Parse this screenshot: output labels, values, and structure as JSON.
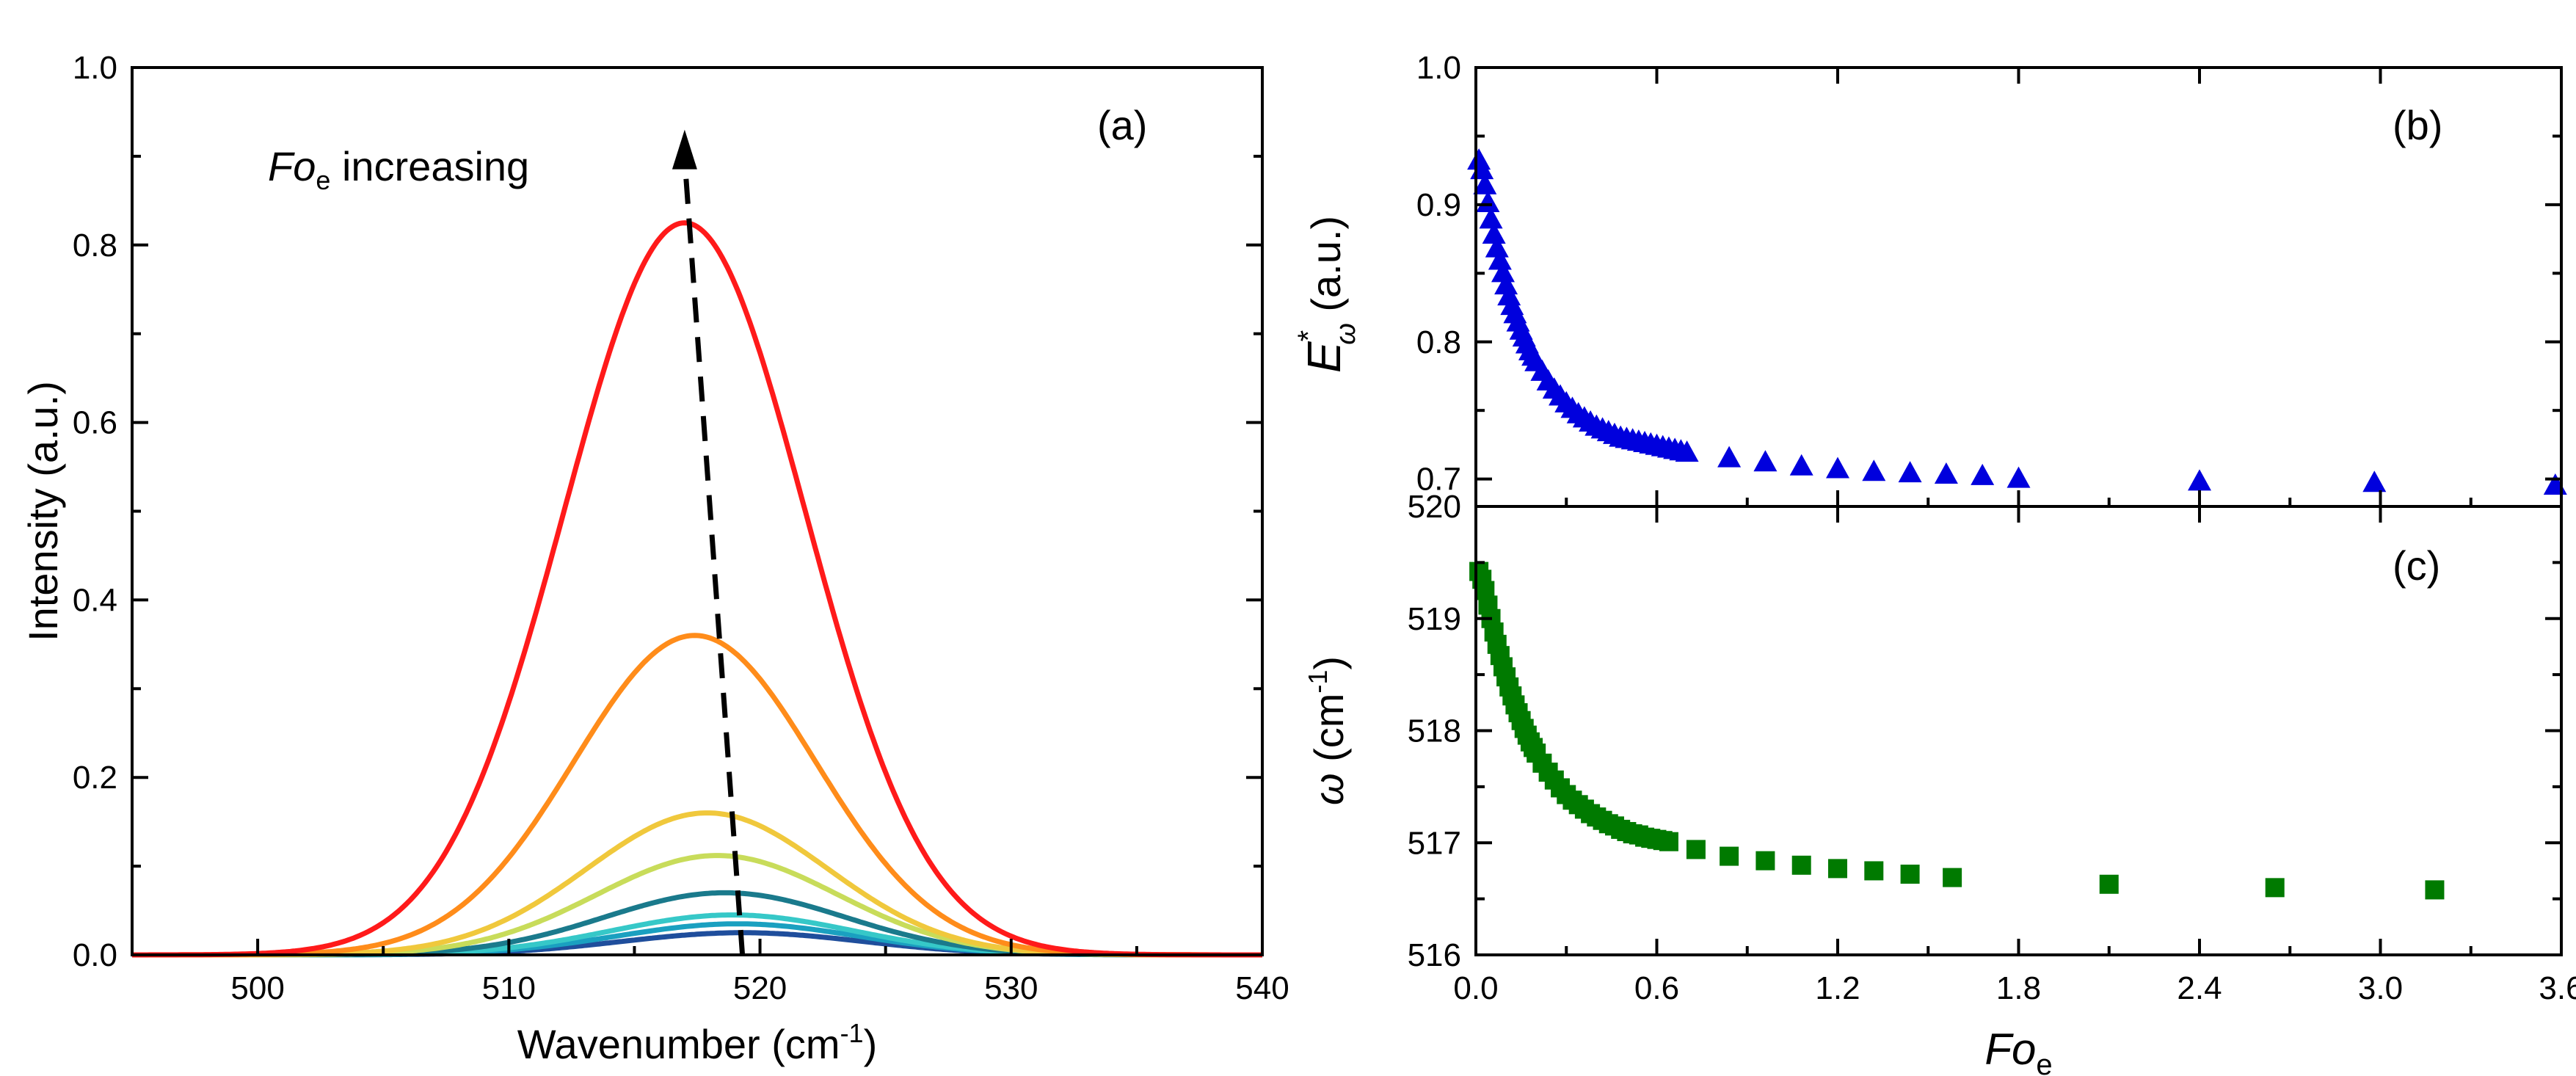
{
  "chart_data": [
    {
      "panel": "(a)",
      "type": "line",
      "xlabel": "Wavenumber (cm",
      "xlabel_sup": "-1",
      "xlabel_end": ")",
      "ylabel": "Intensity (a.u.)",
      "xlim": [
        495,
        540
      ],
      "ylim": [
        0,
        1.0
      ],
      "xticks": [
        500,
        510,
        520,
        530,
        540
      ],
      "yticks": [
        0.0,
        0.2,
        0.4,
        0.6,
        0.8,
        1.0
      ],
      "xtick_labels": [
        "500",
        "510",
        "520",
        "530",
        "540"
      ],
      "ytick_labels": [
        "0.0",
        "0.2",
        "0.4",
        "0.6",
        "0.8",
        "1.0"
      ],
      "annotation": {
        "italic": "Fo",
        "sub": "e",
        "text": " increasing"
      },
      "arrow": {
        "x": [
          519.3,
          517.0
        ],
        "y": [
          0.0,
          0.93
        ]
      },
      "curve_model": "gaussian",
      "series": [
        {
          "name": "curve-1",
          "center": 519.3,
          "amplitude": 0.025,
          "sigma": 4.8,
          "color": "#1f4e9c"
        },
        {
          "name": "curve-2",
          "center": 519.1,
          "amplitude": 0.035,
          "sigma": 4.8,
          "color": "#1aa0c0"
        },
        {
          "name": "curve-3",
          "center": 518.9,
          "amplitude": 0.045,
          "sigma": 4.8,
          "color": "#36c8c8"
        },
        {
          "name": "curve-4",
          "center": 518.6,
          "amplitude": 0.07,
          "sigma": 4.8,
          "color": "#1a7a8c"
        },
        {
          "name": "curve-5",
          "center": 518.3,
          "amplitude": 0.112,
          "sigma": 4.8,
          "color": "#c8dc5a"
        },
        {
          "name": "curve-6",
          "center": 517.9,
          "amplitude": 0.16,
          "sigma": 4.8,
          "color": "#f0c83c"
        },
        {
          "name": "curve-7",
          "center": 517.4,
          "amplitude": 0.36,
          "sigma": 4.8,
          "color": "#ff8c1a"
        },
        {
          "name": "curve-8",
          "center": 517.0,
          "amplitude": 0.825,
          "sigma": 4.8,
          "color": "#ff1a1a"
        }
      ]
    },
    {
      "panel": "(b)",
      "type": "scatter",
      "marker": "triangle",
      "color": "#0000dd",
      "ylabel_main": "E",
      "ylabel_sup": "*",
      "ylabel_sub": "ω",
      "ylabel_end": " (a.u.)",
      "xlim": [
        0,
        3.6
      ],
      "ylim": [
        0.68,
        1.0
      ],
      "yticks": [
        0.7,
        0.8,
        0.9,
        1.0
      ],
      "ytick_labels": [
        "0.7",
        "0.8",
        "0.9",
        "1.0"
      ],
      "x": [
        0.01,
        0.02,
        0.03,
        0.04,
        0.05,
        0.06,
        0.07,
        0.08,
        0.09,
        0.1,
        0.11,
        0.12,
        0.13,
        0.14,
        0.15,
        0.16,
        0.17,
        0.18,
        0.19,
        0.2,
        0.22,
        0.24,
        0.26,
        0.28,
        0.3,
        0.32,
        0.34,
        0.36,
        0.38,
        0.4,
        0.42,
        0.44,
        0.46,
        0.48,
        0.5,
        0.52,
        0.54,
        0.56,
        0.58,
        0.6,
        0.62,
        0.64,
        0.66,
        0.68,
        0.7,
        0.84,
        0.96,
        1.08,
        1.2,
        1.32,
        1.44,
        1.56,
        1.68,
        1.8,
        2.4,
        2.98,
        3.58
      ],
      "y": [
        0.932,
        0.925,
        0.914,
        0.901,
        0.889,
        0.878,
        0.868,
        0.859,
        0.85,
        0.841,
        0.833,
        0.826,
        0.82,
        0.814,
        0.808,
        0.803,
        0.798,
        0.793,
        0.789,
        0.785,
        0.778,
        0.771,
        0.765,
        0.76,
        0.755,
        0.751,
        0.747,
        0.744,
        0.741,
        0.738,
        0.736,
        0.734,
        0.732,
        0.73,
        0.729,
        0.728,
        0.727,
        0.726,
        0.725,
        0.724,
        0.723,
        0.722,
        0.721,
        0.72,
        0.719,
        0.715,
        0.712,
        0.709,
        0.707,
        0.705,
        0.704,
        0.703,
        0.702,
        0.7,
        0.698,
        0.697,
        0.695
      ]
    },
    {
      "panel": "(c)",
      "type": "scatter",
      "marker": "square",
      "color": "#007a00",
      "ylabel_main": "ω",
      "ylabel_end": " (cm",
      "ylabel_sup": "-1",
      "ylabel_close": ")",
      "xlabel_italic": "Fo",
      "xlabel_sub": "e",
      "xlim": [
        0,
        3.6
      ],
      "ylim": [
        516,
        520
      ],
      "xticks": [
        0.0,
        0.6,
        1.2,
        1.8,
        2.4,
        3.0,
        3.6
      ],
      "xtick_labels": [
        "0.0",
        "0.6",
        "1.2",
        "1.8",
        "2.4",
        "3.0",
        "3.6"
      ],
      "yticks": [
        516,
        517,
        518,
        519,
        520
      ],
      "ytick_labels": [
        "516",
        "517",
        "518",
        "519",
        "520"
      ],
      "x": [
        0.01,
        0.02,
        0.03,
        0.04,
        0.05,
        0.06,
        0.07,
        0.08,
        0.09,
        0.1,
        0.11,
        0.12,
        0.13,
        0.14,
        0.15,
        0.16,
        0.17,
        0.18,
        0.19,
        0.2,
        0.22,
        0.24,
        0.26,
        0.28,
        0.3,
        0.32,
        0.34,
        0.36,
        0.38,
        0.4,
        0.42,
        0.44,
        0.46,
        0.48,
        0.5,
        0.52,
        0.54,
        0.56,
        0.58,
        0.6,
        0.62,
        0.64,
        0.73,
        0.84,
        0.96,
        1.08,
        1.2,
        1.32,
        1.44,
        1.58,
        2.1,
        2.65,
        3.18
      ],
      "y": [
        519.42,
        519.35,
        519.25,
        519.12,
        519.0,
        518.88,
        518.77,
        518.67,
        518.57,
        518.48,
        518.39,
        518.31,
        518.23,
        518.16,
        518.09,
        518.02,
        517.96,
        517.9,
        517.85,
        517.8,
        517.71,
        517.63,
        517.56,
        517.49,
        517.43,
        517.38,
        517.34,
        517.3,
        517.26,
        517.23,
        517.2,
        517.17,
        517.15,
        517.12,
        517.1,
        517.08,
        517.07,
        517.05,
        517.04,
        517.03,
        517.02,
        517.01,
        516.94,
        516.88,
        516.84,
        516.8,
        516.77,
        516.75,
        516.72,
        516.69,
        516.63,
        516.6,
        516.58
      ]
    }
  ]
}
